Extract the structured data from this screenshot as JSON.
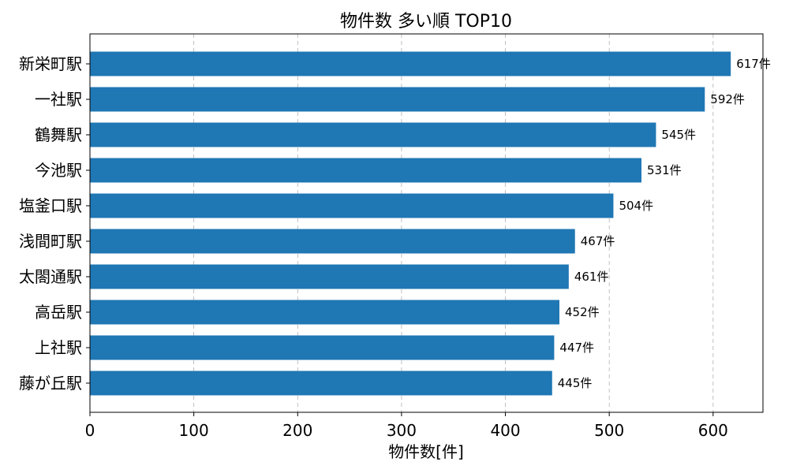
{
  "chart_data": {
    "type": "bar",
    "orientation": "horizontal",
    "title": "物件数 多い順 TOP10",
    "xlabel": "物件数[件]",
    "ylabel": "",
    "categories": [
      "新栄町駅",
      "一社駅",
      "鶴舞駅",
      "今池駅",
      "塩釜口駅",
      "浅間町駅",
      "太閤通駅",
      "高岳駅",
      "上社駅",
      "藤が丘駅"
    ],
    "values": [
      617,
      592,
      545,
      531,
      504,
      467,
      461,
      452,
      447,
      445
    ],
    "value_suffix": "件",
    "xlim": [
      0,
      648
    ],
    "xticks": [
      0,
      100,
      200,
      300,
      400,
      500,
      600
    ],
    "grid": true,
    "bar_color": "#1f77b4"
  }
}
